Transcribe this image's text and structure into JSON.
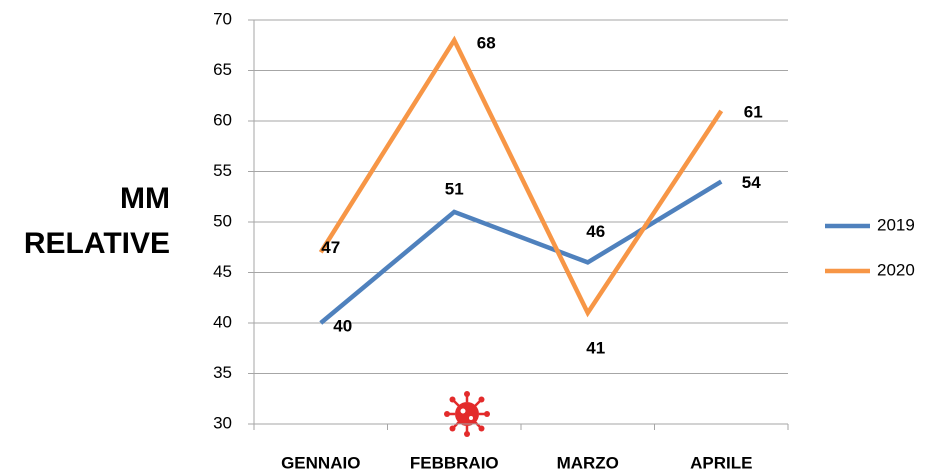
{
  "chart_data": {
    "type": "line",
    "y_label": [
      "MM",
      "RELATIVE"
    ],
    "categories": [
      "GENNAIO",
      "FEBBRAIO",
      "MARZO",
      "APRILE"
    ],
    "series": [
      {
        "name": "2019",
        "color": "#4f81bd",
        "values": [
          40,
          51,
          46,
          54
        ]
      },
      {
        "name": "2020",
        "color": "#f79646",
        "values": [
          47,
          68,
          41,
          61
        ]
      }
    ],
    "ylim": [
      30,
      70
    ],
    "yticks": [
      30,
      35,
      40,
      45,
      50,
      55,
      60,
      65,
      70
    ],
    "grid": true,
    "legend": "right"
  }
}
